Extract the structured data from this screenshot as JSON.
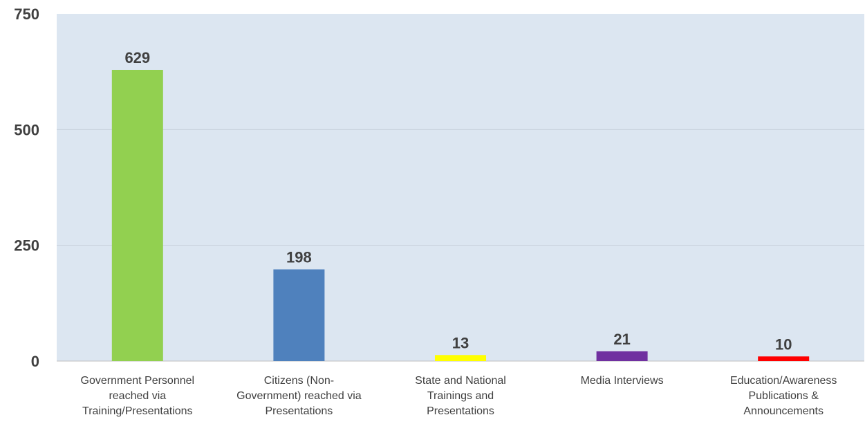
{
  "chart_data": {
    "type": "bar",
    "categories": [
      [
        "Government Personnel",
        "reached via",
        "Training/Presentations"
      ],
      [
        "Citizens (Non-",
        "Government) reached via",
        "Presentations"
      ],
      [
        "State and National",
        "Trainings and",
        "Presentations"
      ],
      [
        "Media Interviews"
      ],
      [
        "Education/Awareness",
        "Publications &",
        "Announcements"
      ]
    ],
    "values": [
      629,
      198,
      13,
      21,
      10
    ],
    "value_labels": [
      "629",
      "198",
      "13",
      "21",
      "10"
    ],
    "colors": [
      "#92d050",
      "#4f81bd",
      "#ffff00",
      "#7030a0",
      "#ff0000"
    ],
    "y_ticks": [
      0,
      250,
      500,
      750
    ],
    "y_tick_labels": [
      "0",
      "250",
      "500",
      "750"
    ],
    "ylim": [
      0,
      750
    ],
    "plot_background": "#dce6f1",
    "gridlines": true
  }
}
